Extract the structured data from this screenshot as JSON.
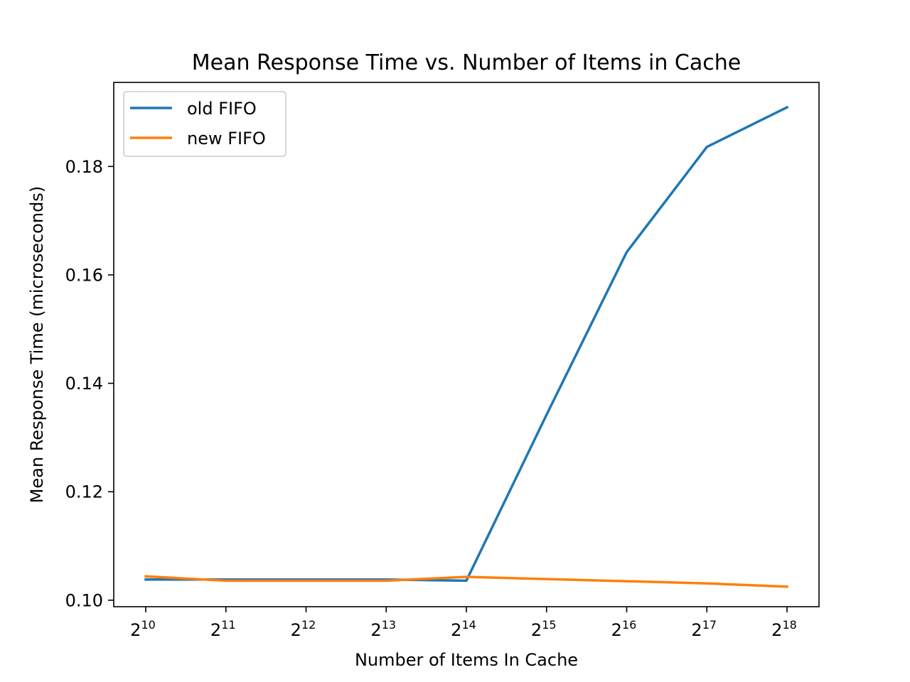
{
  "chart_data": {
    "type": "line",
    "title": "Mean Response Time vs. Number of Items in Cache",
    "xlabel": "Number of Items In Cache",
    "ylabel": "Mean Response Time (microseconds)",
    "x_scale": "log2",
    "x": [
      1024,
      2048,
      4096,
      8192,
      16384,
      32768,
      65536,
      131072,
      262144
    ],
    "x_tick_labels": [
      {
        "base": "2",
        "exp": "10"
      },
      {
        "base": "2",
        "exp": "11"
      },
      {
        "base": "2",
        "exp": "12"
      },
      {
        "base": "2",
        "exp": "13"
      },
      {
        "base": "2",
        "exp": "14"
      },
      {
        "base": "2",
        "exp": "15"
      },
      {
        "base": "2",
        "exp": "16"
      },
      {
        "base": "2",
        "exp": "17"
      },
      {
        "base": "2",
        "exp": "18"
      }
    ],
    "y_ticks": [
      0.1,
      0.12,
      0.14,
      0.16,
      0.18
    ],
    "y_tick_labels": [
      "0.10",
      "0.12",
      "0.14",
      "0.16",
      "0.18"
    ],
    "ylim": [
      0.0988,
      0.1955
    ],
    "legend_position": "top-left",
    "grid": false,
    "series": [
      {
        "name": "old FIFO",
        "color": "#1f77b4",
        "values": [
          0.1038,
          0.1038,
          0.1038,
          0.1038,
          0.1036,
          0.1342,
          0.1642,
          0.1836,
          0.1909
        ]
      },
      {
        "name": "new FIFO",
        "color": "#ff7f0e",
        "values": [
          0.1044,
          0.1036,
          0.1036,
          0.1036,
          0.1043,
          0.1039,
          0.1035,
          0.1031,
          0.1025
        ]
      }
    ]
  }
}
